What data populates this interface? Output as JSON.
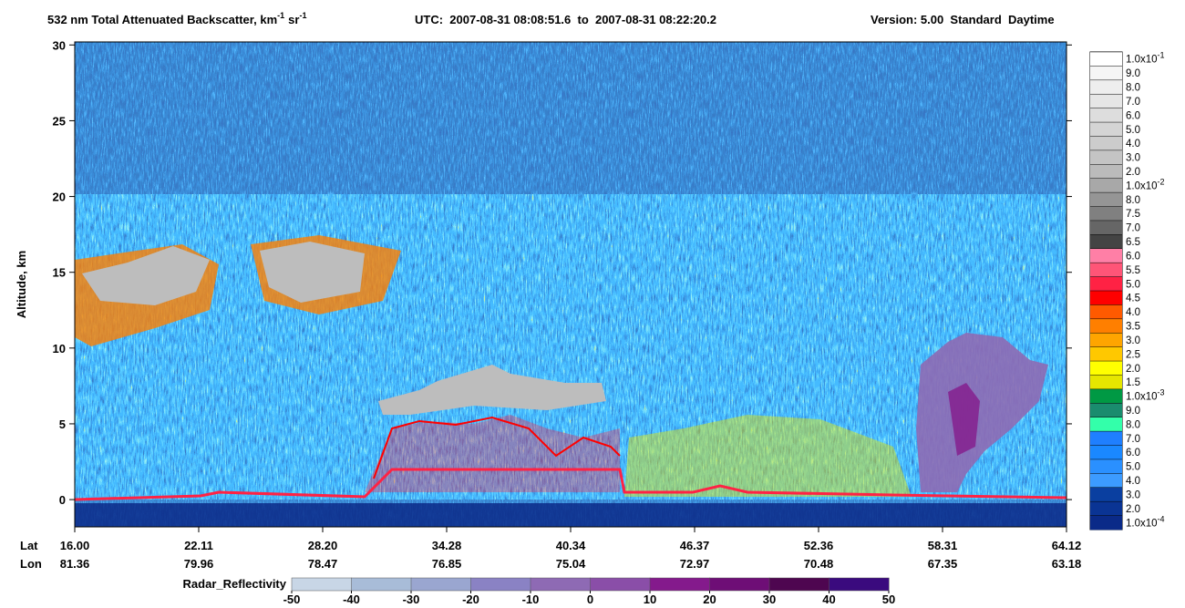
{
  "chart_data": {
    "type": "curtain",
    "title": {
      "main": "532 nm Total Attenuated Backscatter, km",
      "main_exp": "-1",
      "unit2": "sr",
      "unit2_exp": "-1",
      "utc": "UTC:  2007-08-31 08:08:51.6  to  2007-08-31 08:22:20.2",
      "version": "Version: 5.00  Standard  Daytime"
    },
    "y_label": "Altitude, km",
    "ylim": [
      -1.8,
      30.2
    ],
    "yticks": [
      0,
      5,
      10,
      15,
      20,
      25,
      30
    ],
    "x_rows": {
      "lat_label": "Lat",
      "lon_label": "Lon",
      "lat": [
        "16.00",
        "22.11",
        "28.20",
        "34.28",
        "40.34",
        "46.37",
        "52.36",
        "58.31",
        "64.12"
      ],
      "lon": [
        "81.36",
        "79.96",
        "78.47",
        "76.85",
        "75.04",
        "72.97",
        "70.48",
        "67.35",
        "63.18"
      ]
    },
    "colorbar": {
      "labels": [
        "1.0x10",
        "9.0",
        "8.0",
        "7.0",
        "6.0",
        "5.0",
        "4.0",
        "3.0",
        "2.0",
        "1.0x10",
        "8.0",
        "7.5",
        "7.0",
        "6.5",
        "6.0",
        "5.5",
        "5.0",
        "4.5",
        "4.0",
        "3.5",
        "3.0",
        "2.5",
        "2.0",
        "1.5",
        "1.0x10",
        "9.0",
        "8.0",
        "7.0",
        "6.0",
        "5.0",
        "4.0",
        "3.0",
        "2.0",
        "1.0x10"
      ],
      "exponents": [
        "-1",
        null,
        null,
        null,
        null,
        null,
        null,
        null,
        null,
        "-2",
        null,
        null,
        null,
        null,
        null,
        null,
        null,
        null,
        null,
        null,
        null,
        null,
        null,
        null,
        "-3",
        null,
        null,
        null,
        null,
        null,
        null,
        null,
        null,
        "-4"
      ],
      "colors": [
        "#ffffff",
        "#f5f5f5",
        "#eeeeee",
        "#e6e6e6",
        "#dddddd",
        "#d4d4d4",
        "#cccccc",
        "#c4c4c4",
        "#bbbbbb",
        "#a8a8a8",
        "#959595",
        "#808080",
        "#666666",
        "#444444",
        "#ff7fa6",
        "#ff5577",
        "#ff2244",
        "#ff0000",
        "#ff5a00",
        "#ff7f00",
        "#ffa500",
        "#ffc800",
        "#ffff00",
        "#e6e600",
        "#009944",
        "#1a8c6e",
        "#33ffaa",
        "#1f7fff",
        "#1a88ff",
        "#2a90ff",
        "#3c9bff",
        "#0a3fa0",
        "#0a3494",
        "#0a2a88"
      ]
    },
    "radar_colorbar": {
      "label": "Radar_Reflectivity",
      "lim": [
        -50,
        50
      ],
      "ticks": [
        -50,
        -40,
        -30,
        -20,
        -10,
        0,
        10,
        20,
        30,
        40,
        50
      ],
      "colors": [
        "#c8d6e6",
        "#a8bcd8",
        "#9aa6d0",
        "#8a82c4",
        "#8e6ab4",
        "#8a4ea8",
        "#841a8c",
        "#6e0e76",
        "#4e0650",
        "#3a0a7e"
      ]
    }
  }
}
